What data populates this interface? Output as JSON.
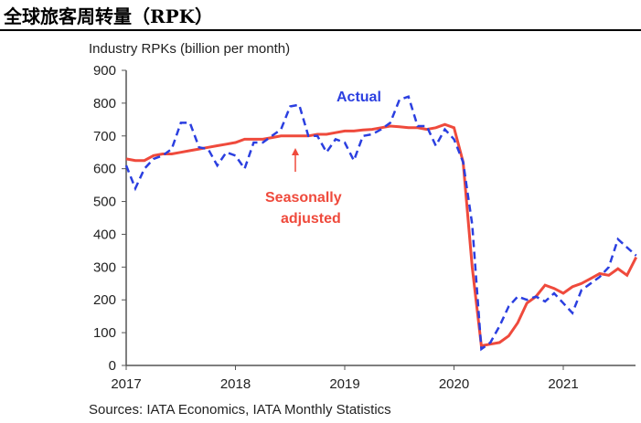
{
  "page_title": "全球旅客周转量（RPK）",
  "chart_data": {
    "type": "line",
    "title": "全球旅客周转量（RPK）",
    "ylabel": "Industry RPKs (billion per month)",
    "xlabel": "",
    "ylim": [
      0,
      900
    ],
    "yticks": [
      "0",
      "100",
      "200",
      "300",
      "400",
      "500",
      "600",
      "700",
      "800",
      "900"
    ],
    "xticks": [
      "2017",
      "2018",
      "2019",
      "2020",
      "2021"
    ],
    "x_start": "2017-01",
    "x_step": "month",
    "series": [
      {
        "name": "Actual",
        "style": "dashed",
        "color": "#2b3fe0",
        "values": [
          610,
          540,
          600,
          630,
          640,
          660,
          740,
          740,
          665,
          660,
          610,
          650,
          640,
          600,
          680,
          680,
          700,
          720,
          790,
          795,
          700,
          700,
          650,
          690,
          680,
          625,
          700,
          705,
          720,
          740,
          810,
          820,
          730,
          730,
          670,
          720,
          690,
          620,
          430,
          50,
          70,
          120,
          180,
          210,
          200,
          210,
          195,
          220,
          190,
          160,
          230,
          250,
          270,
          300,
          385,
          360,
          335
        ]
      },
      {
        "name": "Seasonally adjusted",
        "style": "solid",
        "color": "#ef4a3c",
        "values": [
          630,
          625,
          625,
          640,
          645,
          645,
          650,
          655,
          660,
          665,
          670,
          675,
          680,
          690,
          690,
          690,
          695,
          700,
          700,
          700,
          700,
          705,
          705,
          710,
          715,
          715,
          718,
          720,
          725,
          730,
          728,
          725,
          725,
          720,
          725,
          735,
          725,
          620,
          300,
          60,
          65,
          70,
          90,
          130,
          190,
          210,
          245,
          235,
          220,
          240,
          250,
          265,
          280,
          275,
          295,
          275,
          330
        ]
      }
    ],
    "annotations": [
      "Actual",
      "Seasonally",
      "adjusted"
    ],
    "source": "Sources: IATA Economics, IATA Monthly Statistics",
    "grid": false
  }
}
